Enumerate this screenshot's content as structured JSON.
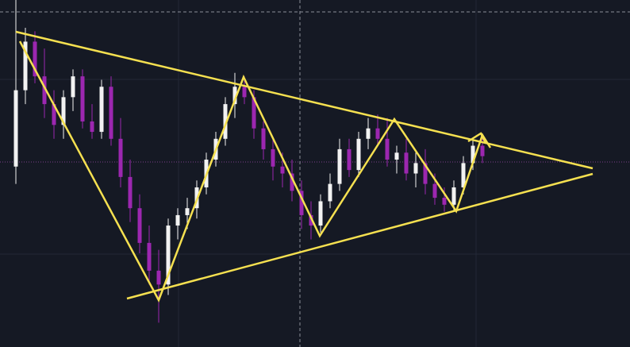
{
  "chart_data": {
    "type": "candlestick",
    "ylim": [
      0,
      100
    ],
    "up_color": "#f2f2f2",
    "down_color": "#9c27b0",
    "open": [
      52,
      74,
      88,
      78,
      70,
      64,
      72,
      78,
      65,
      62,
      75,
      60,
      49,
      40,
      30,
      22,
      18,
      35,
      38,
      40,
      46,
      54,
      60,
      70,
      75,
      72,
      63,
      57,
      52,
      50,
      45,
      38,
      35,
      42,
      47,
      57,
      51,
      60,
      63,
      60,
      54,
      56,
      50,
      53,
      47,
      43,
      41,
      46,
      53,
      58
    ],
    "high": [
      100,
      92,
      91,
      86,
      74,
      74,
      80,
      80,
      70,
      77,
      78,
      66,
      54,
      44,
      35,
      28,
      37,
      40,
      43,
      48,
      56,
      62,
      72,
      79,
      78,
      74,
      65,
      60,
      56,
      54,
      48,
      42,
      44,
      50,
      60,
      60,
      62,
      66,
      67,
      66,
      58,
      60,
      56,
      57,
      50,
      46,
      48,
      55,
      60,
      60
    ],
    "low": [
      47,
      70,
      76,
      66,
      60,
      60,
      68,
      63,
      60,
      60,
      58,
      46,
      36,
      27,
      18,
      7,
      15,
      31,
      34,
      37,
      44,
      52,
      58,
      66,
      70,
      60,
      54,
      48,
      46,
      42,
      34,
      31,
      33,
      40,
      45,
      49,
      49,
      57,
      58,
      52,
      50,
      48,
      46,
      44,
      41,
      39,
      39,
      44,
      51,
      53
    ],
    "close": [
      74,
      88,
      78,
      70,
      64,
      72,
      78,
      65,
      62,
      75,
      60,
      49,
      40,
      30,
      22,
      18,
      35,
      38,
      40,
      46,
      54,
      60,
      70,
      75,
      72,
      63,
      57,
      52,
      50,
      45,
      38,
      35,
      42,
      47,
      57,
      51,
      60,
      63,
      60,
      54,
      56,
      50,
      53,
      47,
      43,
      41,
      46,
      53,
      58,
      55
    ]
  }
}
